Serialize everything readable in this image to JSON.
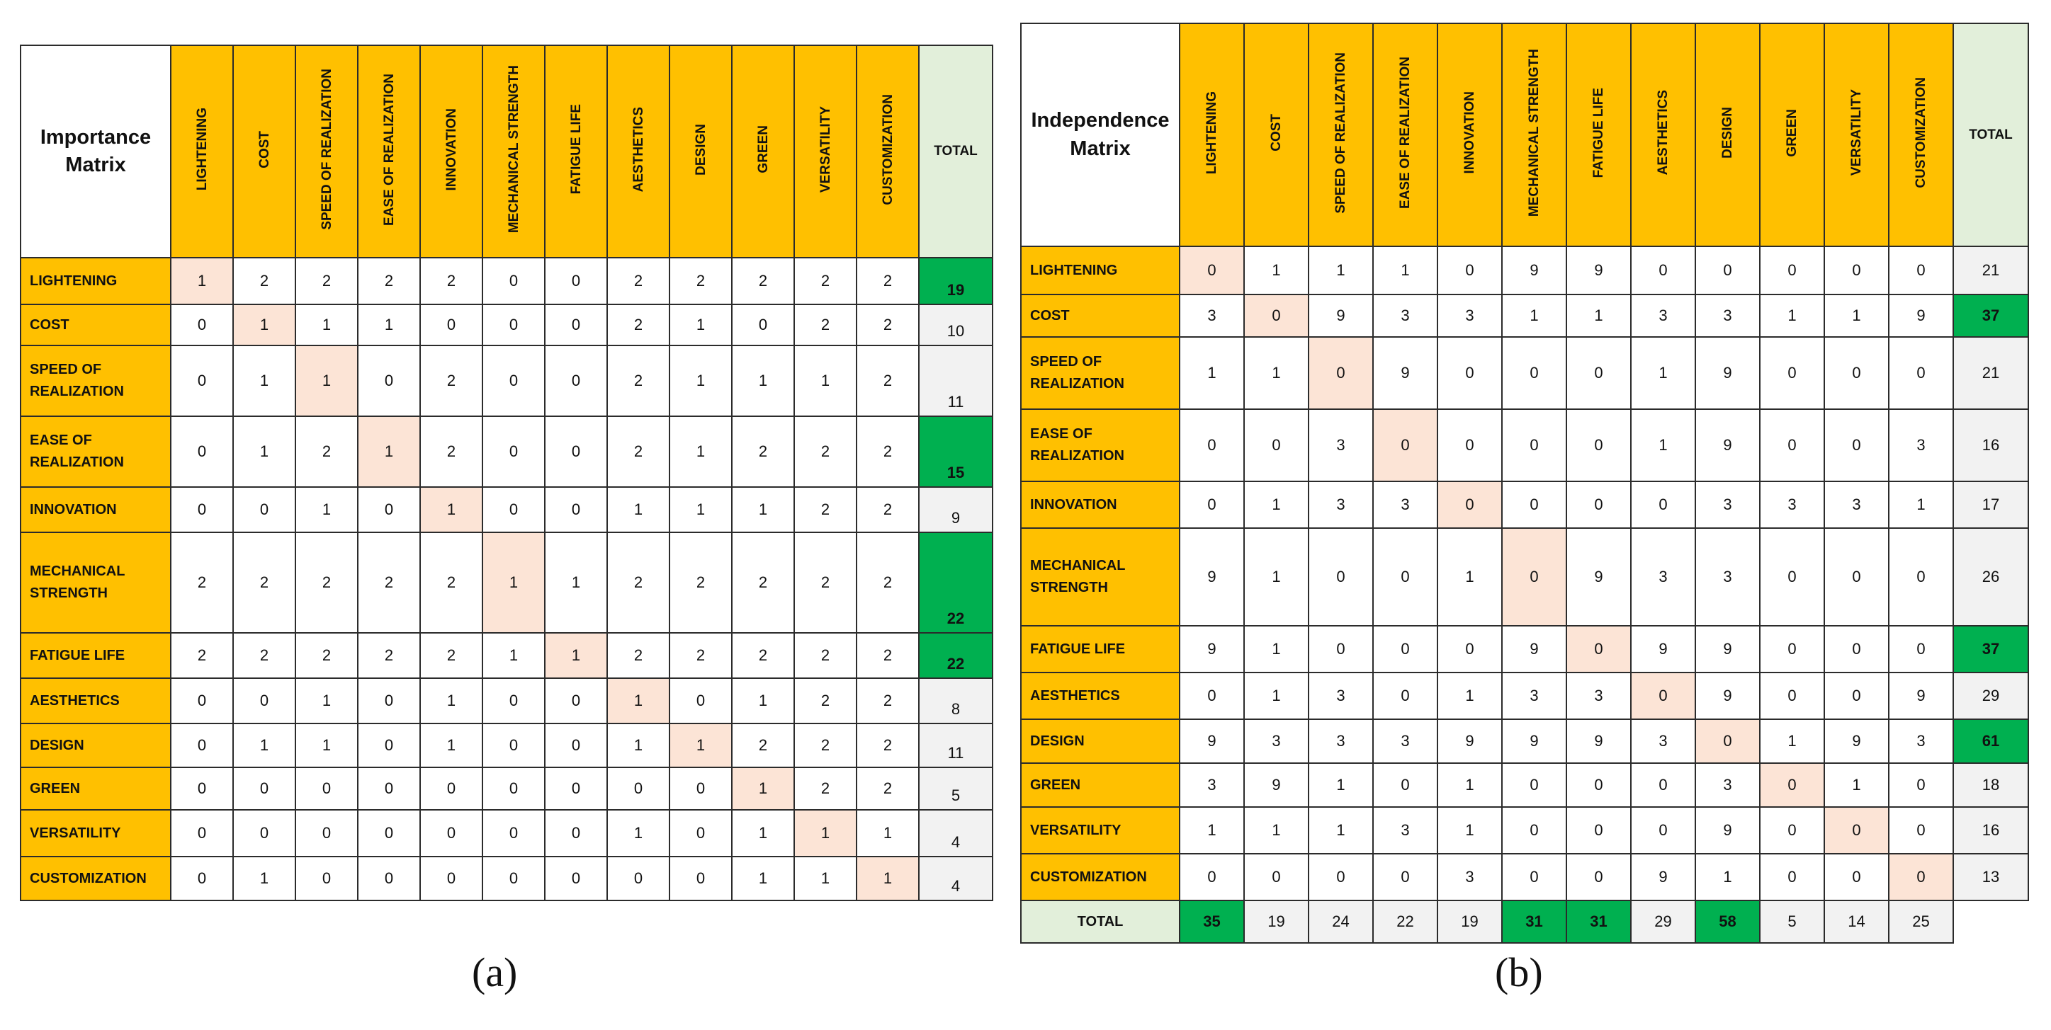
{
  "colors": {
    "header_fill": "#FFC000",
    "total_header_fill": "#E2EFDA",
    "diagonal_fill": "#FCE4D6",
    "total_fill": "#F2F2F2",
    "highlight_fill": "#00B050"
  },
  "caption_a": "(a)",
  "caption_b": "(b)",
  "importance": {
    "title_line1": "Importance",
    "title_line2": "Matrix",
    "total_label": "TOTAL",
    "columns": [
      "LIGHTENING",
      "COST",
      "SPEED OF REALIZATION",
      "EASE OF REALIZATION",
      "INNOVATION",
      "MECHANICAL STRENGTH",
      "FATIGUE LIFE",
      "AESTHETICS",
      "DESIGN",
      "GREEN",
      "VERSATILITY",
      "CUSTOMIZATION"
    ],
    "rows": [
      {
        "label_lines": [
          "LIGHTENING"
        ],
        "values": [
          "1",
          "2",
          "2",
          "2",
          "2",
          "0",
          "0",
          "2",
          "2",
          "2",
          "2",
          "2"
        ],
        "total": "19",
        "highlight": true
      },
      {
        "label_lines": [
          "COST"
        ],
        "values": [
          "0",
          "1",
          "1",
          "1",
          "0",
          "0",
          "0",
          "2",
          "1",
          "0",
          "2",
          "2"
        ],
        "total": "10",
        "highlight": false
      },
      {
        "label_lines": [
          "SPEED OF",
          "REALIZATION"
        ],
        "values": [
          "0",
          "1",
          "1",
          "0",
          "2",
          "0",
          "0",
          "2",
          "1",
          "1",
          "1",
          "2"
        ],
        "total": "11",
        "highlight": false
      },
      {
        "label_lines": [
          "EASE OF",
          "REALIZATION"
        ],
        "values": [
          "0",
          "1",
          "2",
          "1",
          "2",
          "0",
          "0",
          "2",
          "1",
          "2",
          "2",
          "2"
        ],
        "total": "15",
        "highlight": true
      },
      {
        "label_lines": [
          "INNOVATION"
        ],
        "values": [
          "0",
          "0",
          "1",
          "0",
          "1",
          "0",
          "0",
          "1",
          "1",
          "1",
          "2",
          "2"
        ],
        "total": "9",
        "highlight": false
      },
      {
        "label_lines": [
          "MECHANICAL",
          "STRENGTH"
        ],
        "values": [
          "2",
          "2",
          "2",
          "2",
          "2",
          "1",
          "1",
          "2",
          "2",
          "2",
          "2",
          "2"
        ],
        "total": "22",
        "highlight": true
      },
      {
        "label_lines": [
          "FATIGUE LIFE"
        ],
        "values": [
          "2",
          "2",
          "2",
          "2",
          "2",
          "1",
          "1",
          "2",
          "2",
          "2",
          "2",
          "2"
        ],
        "total": "22",
        "highlight": true
      },
      {
        "label_lines": [
          "AESTHETICS"
        ],
        "values": [
          "0",
          "0",
          "1",
          "0",
          "1",
          "0",
          "0",
          "1",
          "0",
          "1",
          "2",
          "2"
        ],
        "total": "8",
        "highlight": false
      },
      {
        "label_lines": [
          "DESIGN"
        ],
        "values": [
          "0",
          "1",
          "1",
          "0",
          "1",
          "0",
          "0",
          "1",
          "1",
          "2",
          "2",
          "2"
        ],
        "total": "11",
        "highlight": false
      },
      {
        "label_lines": [
          "GREEN"
        ],
        "values": [
          "0",
          "0",
          "0",
          "0",
          "0",
          "0",
          "0",
          "0",
          "0",
          "1",
          "2",
          "2"
        ],
        "total": "5",
        "highlight": false
      },
      {
        "label_lines": [
          "VERSATILITY"
        ],
        "values": [
          "0",
          "0",
          "0",
          "0",
          "0",
          "0",
          "0",
          "1",
          "0",
          "1",
          "1",
          "1"
        ],
        "total": "4",
        "highlight": false
      },
      {
        "label_lines": [
          "CUSTOMIZATION"
        ],
        "values": [
          "0",
          "1",
          "0",
          "0",
          "0",
          "0",
          "0",
          "0",
          "0",
          "1",
          "1",
          "1"
        ],
        "total": "4",
        "highlight": false
      }
    ]
  },
  "independence": {
    "title_line1": "Independence",
    "title_line2": "Matrix",
    "total_label": "TOTAL",
    "bottom_label": "TOTAL",
    "columns": [
      "LIGHTENING",
      "COST",
      "SPEED OF REALIZATION",
      "EASE OF REALIZATION",
      "INNOVATION",
      "MECHANICAL STRENGTH",
      "FATIGUE LIFE",
      "AESTHETICS",
      "DESIGN",
      "GREEN",
      "VERSATILITY",
      "CUSTOMIZATION"
    ],
    "rows": [
      {
        "label_lines": [
          "LIGHTENING"
        ],
        "values": [
          "0",
          "1",
          "1",
          "1",
          "0",
          "9",
          "9",
          "0",
          "0",
          "0",
          "0",
          "0"
        ],
        "total": "21",
        "highlight": false
      },
      {
        "label_lines": [
          "COST"
        ],
        "values": [
          "3",
          "0",
          "9",
          "3",
          "3",
          "1",
          "1",
          "3",
          "3",
          "1",
          "1",
          "9"
        ],
        "total": "37",
        "highlight": true
      },
      {
        "label_lines": [
          "SPEED OF",
          "REALIZATION"
        ],
        "values": [
          "1",
          "1",
          "0",
          "9",
          "0",
          "0",
          "0",
          "1",
          "9",
          "0",
          "0",
          "0"
        ],
        "total": "21",
        "highlight": false
      },
      {
        "label_lines": [
          "EASE OF",
          "REALIZATION"
        ],
        "values": [
          "0",
          "0",
          "3",
          "0",
          "0",
          "0",
          "0",
          "1",
          "9",
          "0",
          "0",
          "3"
        ],
        "total": "16",
        "highlight": false
      },
      {
        "label_lines": [
          "INNOVATION"
        ],
        "values": [
          "0",
          "1",
          "3",
          "3",
          "0",
          "0",
          "0",
          "0",
          "3",
          "3",
          "3",
          "1"
        ],
        "total": "17",
        "highlight": false
      },
      {
        "label_lines": [
          "MECHANICAL",
          "STRENGTH"
        ],
        "values": [
          "9",
          "1",
          "0",
          "0",
          "1",
          "0",
          "9",
          "3",
          "3",
          "0",
          "0",
          "0"
        ],
        "total": "26",
        "highlight": false
      },
      {
        "label_lines": [
          "FATIGUE LIFE"
        ],
        "values": [
          "9",
          "1",
          "0",
          "0",
          "0",
          "9",
          "0",
          "9",
          "9",
          "0",
          "0",
          "0"
        ],
        "total": "37",
        "highlight": true
      },
      {
        "label_lines": [
          "AESTHETICS"
        ],
        "values": [
          "0",
          "1",
          "3",
          "0",
          "1",
          "3",
          "3",
          "0",
          "9",
          "0",
          "0",
          "9"
        ],
        "total": "29",
        "highlight": false
      },
      {
        "label_lines": [
          "DESIGN"
        ],
        "values": [
          "9",
          "3",
          "3",
          "3",
          "9",
          "9",
          "9",
          "3",
          "0",
          "1",
          "9",
          "3"
        ],
        "total": "61",
        "highlight": true
      },
      {
        "label_lines": [
          "GREEN"
        ],
        "values": [
          "3",
          "9",
          "1",
          "0",
          "1",
          "0",
          "0",
          "0",
          "3",
          "0",
          "1",
          "0"
        ],
        "total": "18",
        "highlight": false
      },
      {
        "label_lines": [
          "VERSATILITY"
        ],
        "values": [
          "1",
          "1",
          "1",
          "3",
          "1",
          "0",
          "0",
          "0",
          "9",
          "0",
          "0",
          "0"
        ],
        "total": "16",
        "highlight": false
      },
      {
        "label_lines": [
          "CUSTOMIZATION"
        ],
        "values": [
          "0",
          "0",
          "0",
          "0",
          "3",
          "0",
          "0",
          "9",
          "1",
          "0",
          "0",
          "0"
        ],
        "total": "13",
        "highlight": false
      }
    ],
    "column_totals": [
      {
        "value": "35",
        "highlight": true
      },
      {
        "value": "19",
        "highlight": false
      },
      {
        "value": "24",
        "highlight": false
      },
      {
        "value": "22",
        "highlight": false
      },
      {
        "value": "19",
        "highlight": false
      },
      {
        "value": "31",
        "highlight": true
      },
      {
        "value": "31",
        "highlight": true
      },
      {
        "value": "29",
        "highlight": false
      },
      {
        "value": "58",
        "highlight": true
      },
      {
        "value": "5",
        "highlight": false
      },
      {
        "value": "14",
        "highlight": false
      },
      {
        "value": "25",
        "highlight": false
      }
    ]
  }
}
